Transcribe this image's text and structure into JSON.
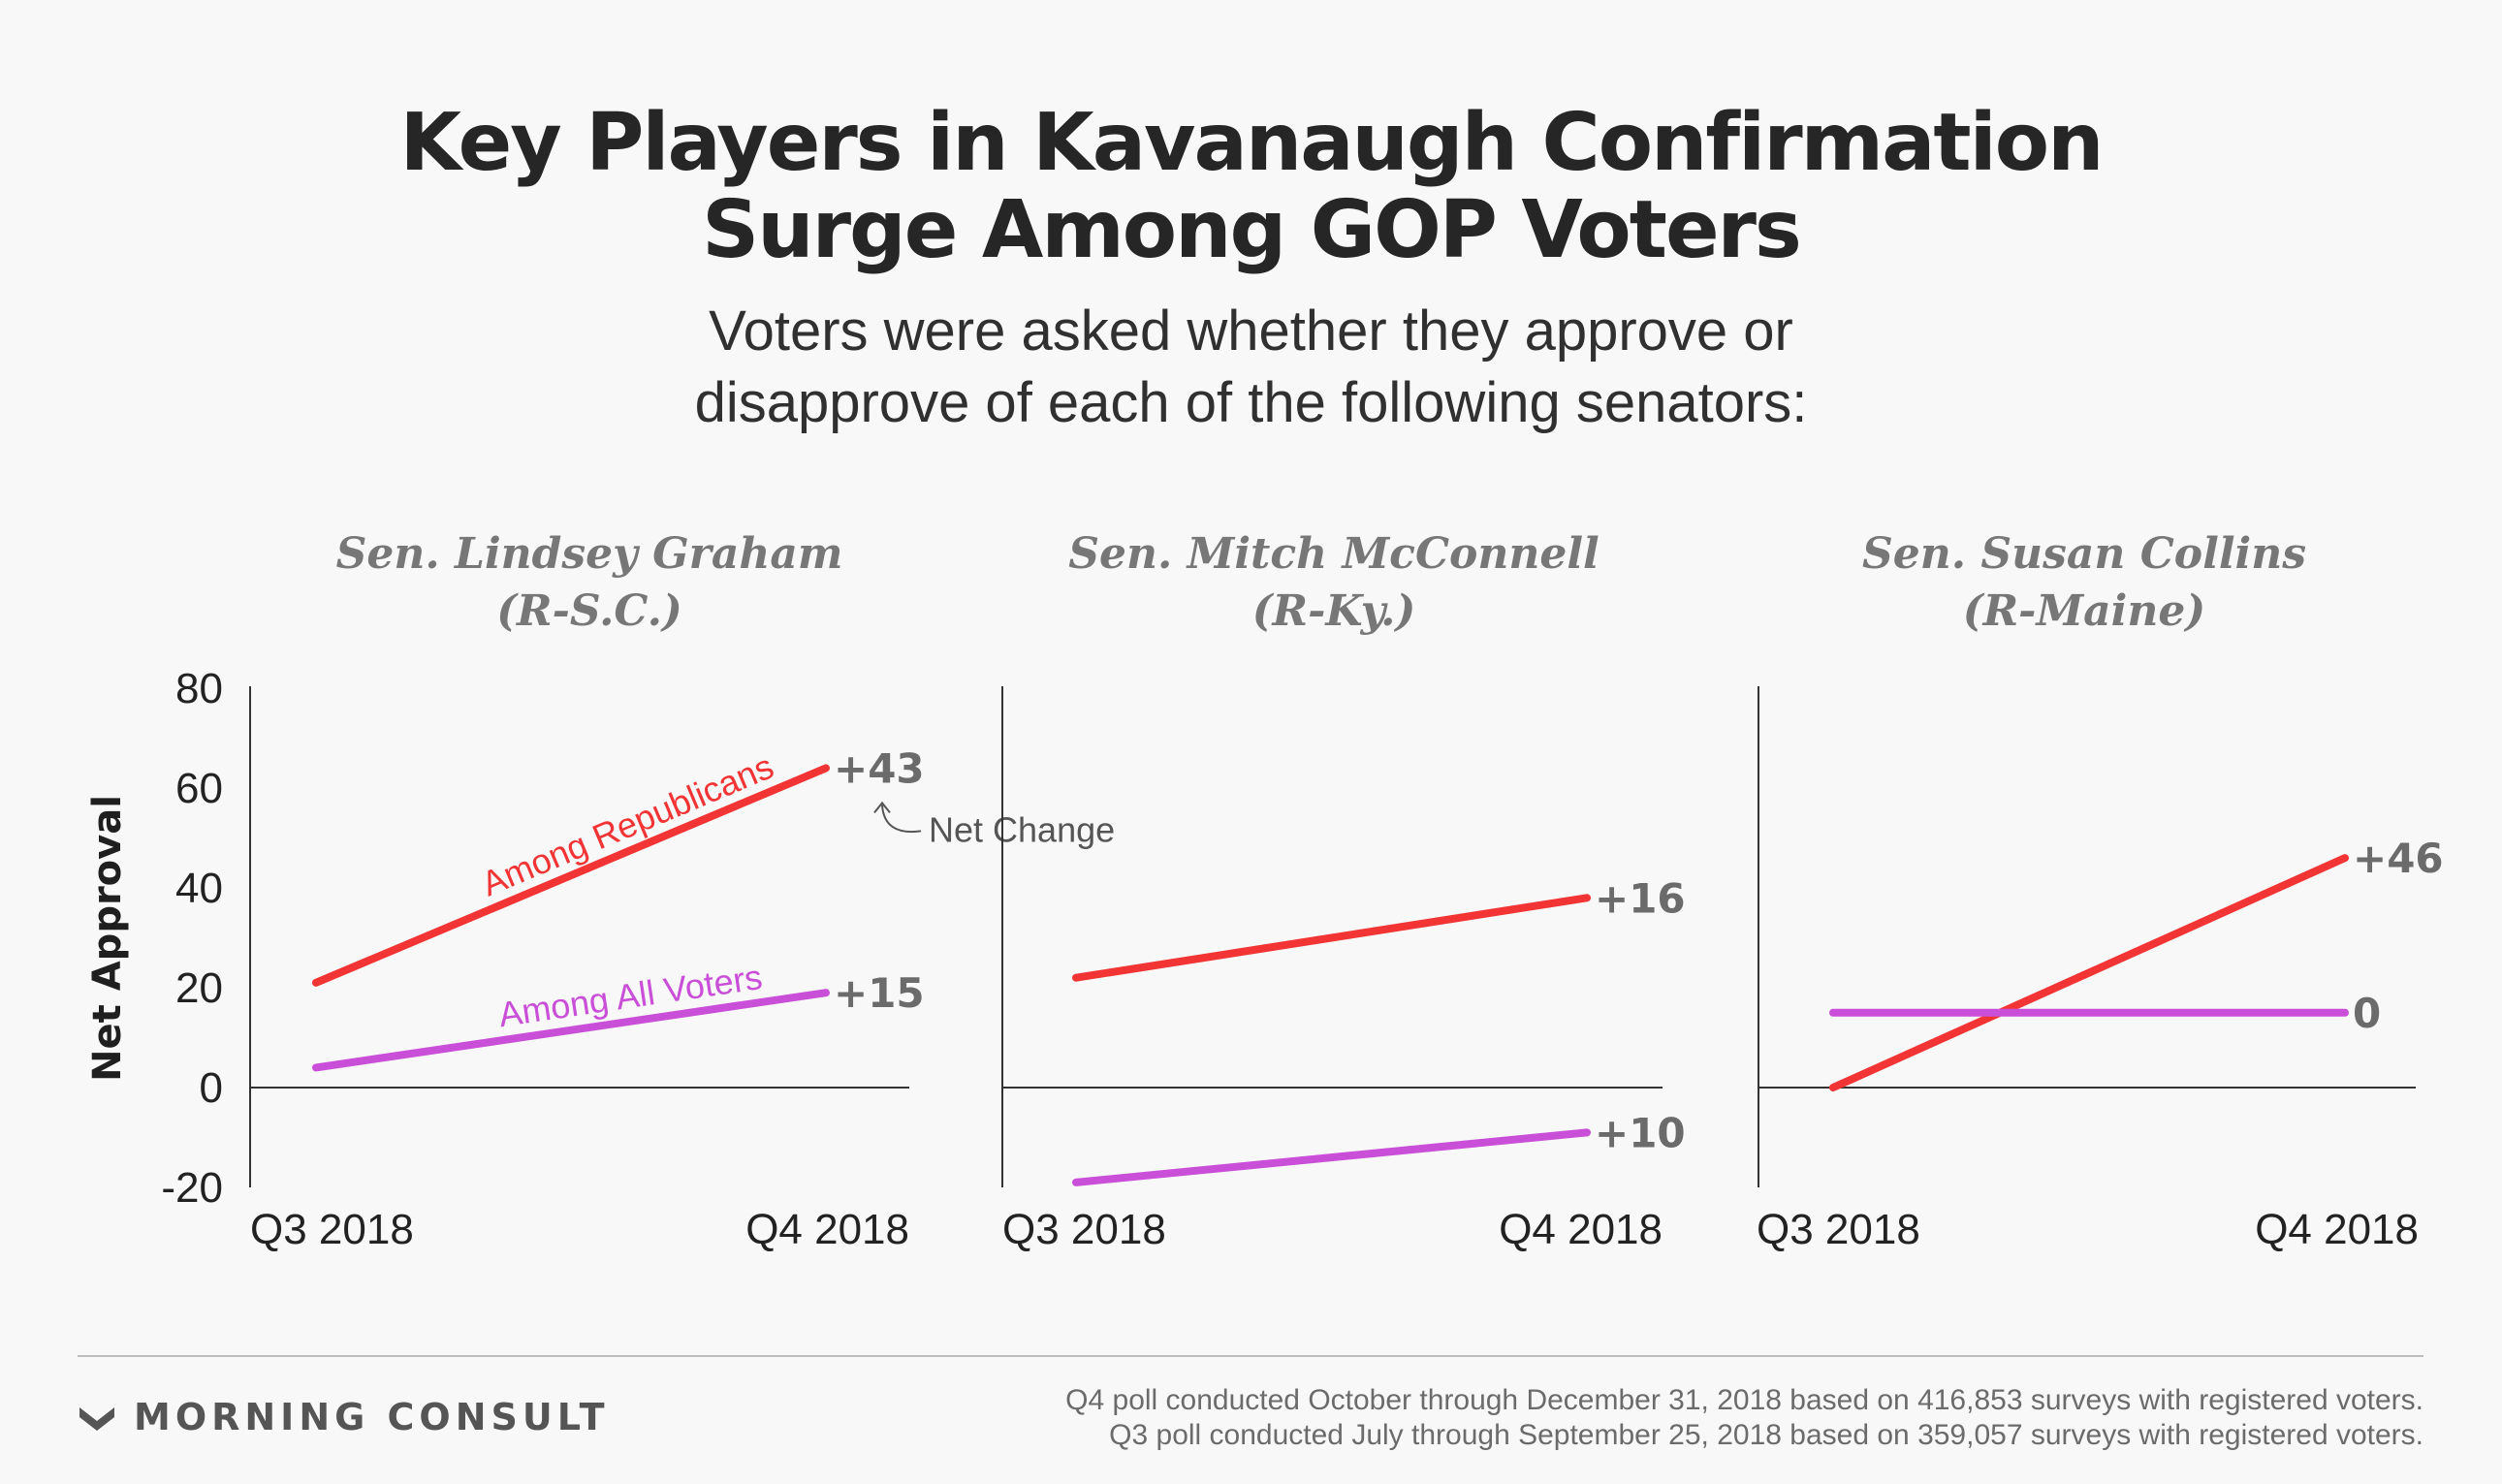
{
  "header": {
    "title_line1": "Key Players in Kavanaugh Confirmation",
    "title_line2": "Surge Among GOP Voters",
    "subtitle_line1": "Voters were asked whether they approve or",
    "subtitle_line2": "disapprove of each of the following senators:"
  },
  "colors": {
    "republicans": "#f23434",
    "all_voters": "#c94ed8",
    "axis": "#333333",
    "value_label": "#6b6b6b"
  },
  "chart_data": {
    "type": "line",
    "ylabel": "Net Approval",
    "ylim": [
      -20,
      80
    ],
    "yticks": [
      80,
      60,
      40,
      20,
      0,
      -20
    ],
    "categories": [
      "Q3 2018",
      "Q4 2018"
    ],
    "grid": false,
    "panels": [
      {
        "title_line1": "Sen. Lindsey Graham",
        "title_line2": "(R-S.C.)",
        "series": [
          {
            "name": "Among Republicans",
            "key": "republicans",
            "values": [
              21,
              64
            ],
            "change_label": "+43"
          },
          {
            "name": "Among All Voters",
            "key": "all_voters",
            "values": [
              4,
              19
            ],
            "change_label": "+15"
          }
        ],
        "annotation": "Net Change"
      },
      {
        "title_line1": "Sen. Mitch McConnell",
        "title_line2": "(R-Ky.)",
        "series": [
          {
            "key": "republicans",
            "values": [
              22,
              38
            ],
            "change_label": "+16"
          },
          {
            "key": "all_voters",
            "values": [
              -19,
              -9
            ],
            "change_label": "+10"
          }
        ]
      },
      {
        "title_line1": "Sen. Susan Collins",
        "title_line2": "(R-Maine)",
        "series": [
          {
            "key": "republicans",
            "values": [
              0,
              46
            ],
            "change_label": "+46"
          },
          {
            "key": "all_voters",
            "values": [
              15,
              15
            ],
            "change_label": "0"
          }
        ]
      }
    ]
  },
  "footer": {
    "brand": "MORNING CONSULT",
    "source_line1": "Q4 poll conducted October through December 31, 2018 based on 416,853 surveys with registered voters.",
    "source_line2": "Q3 poll conducted July through September 25, 2018 based on 359,057 surveys with registered voters."
  }
}
